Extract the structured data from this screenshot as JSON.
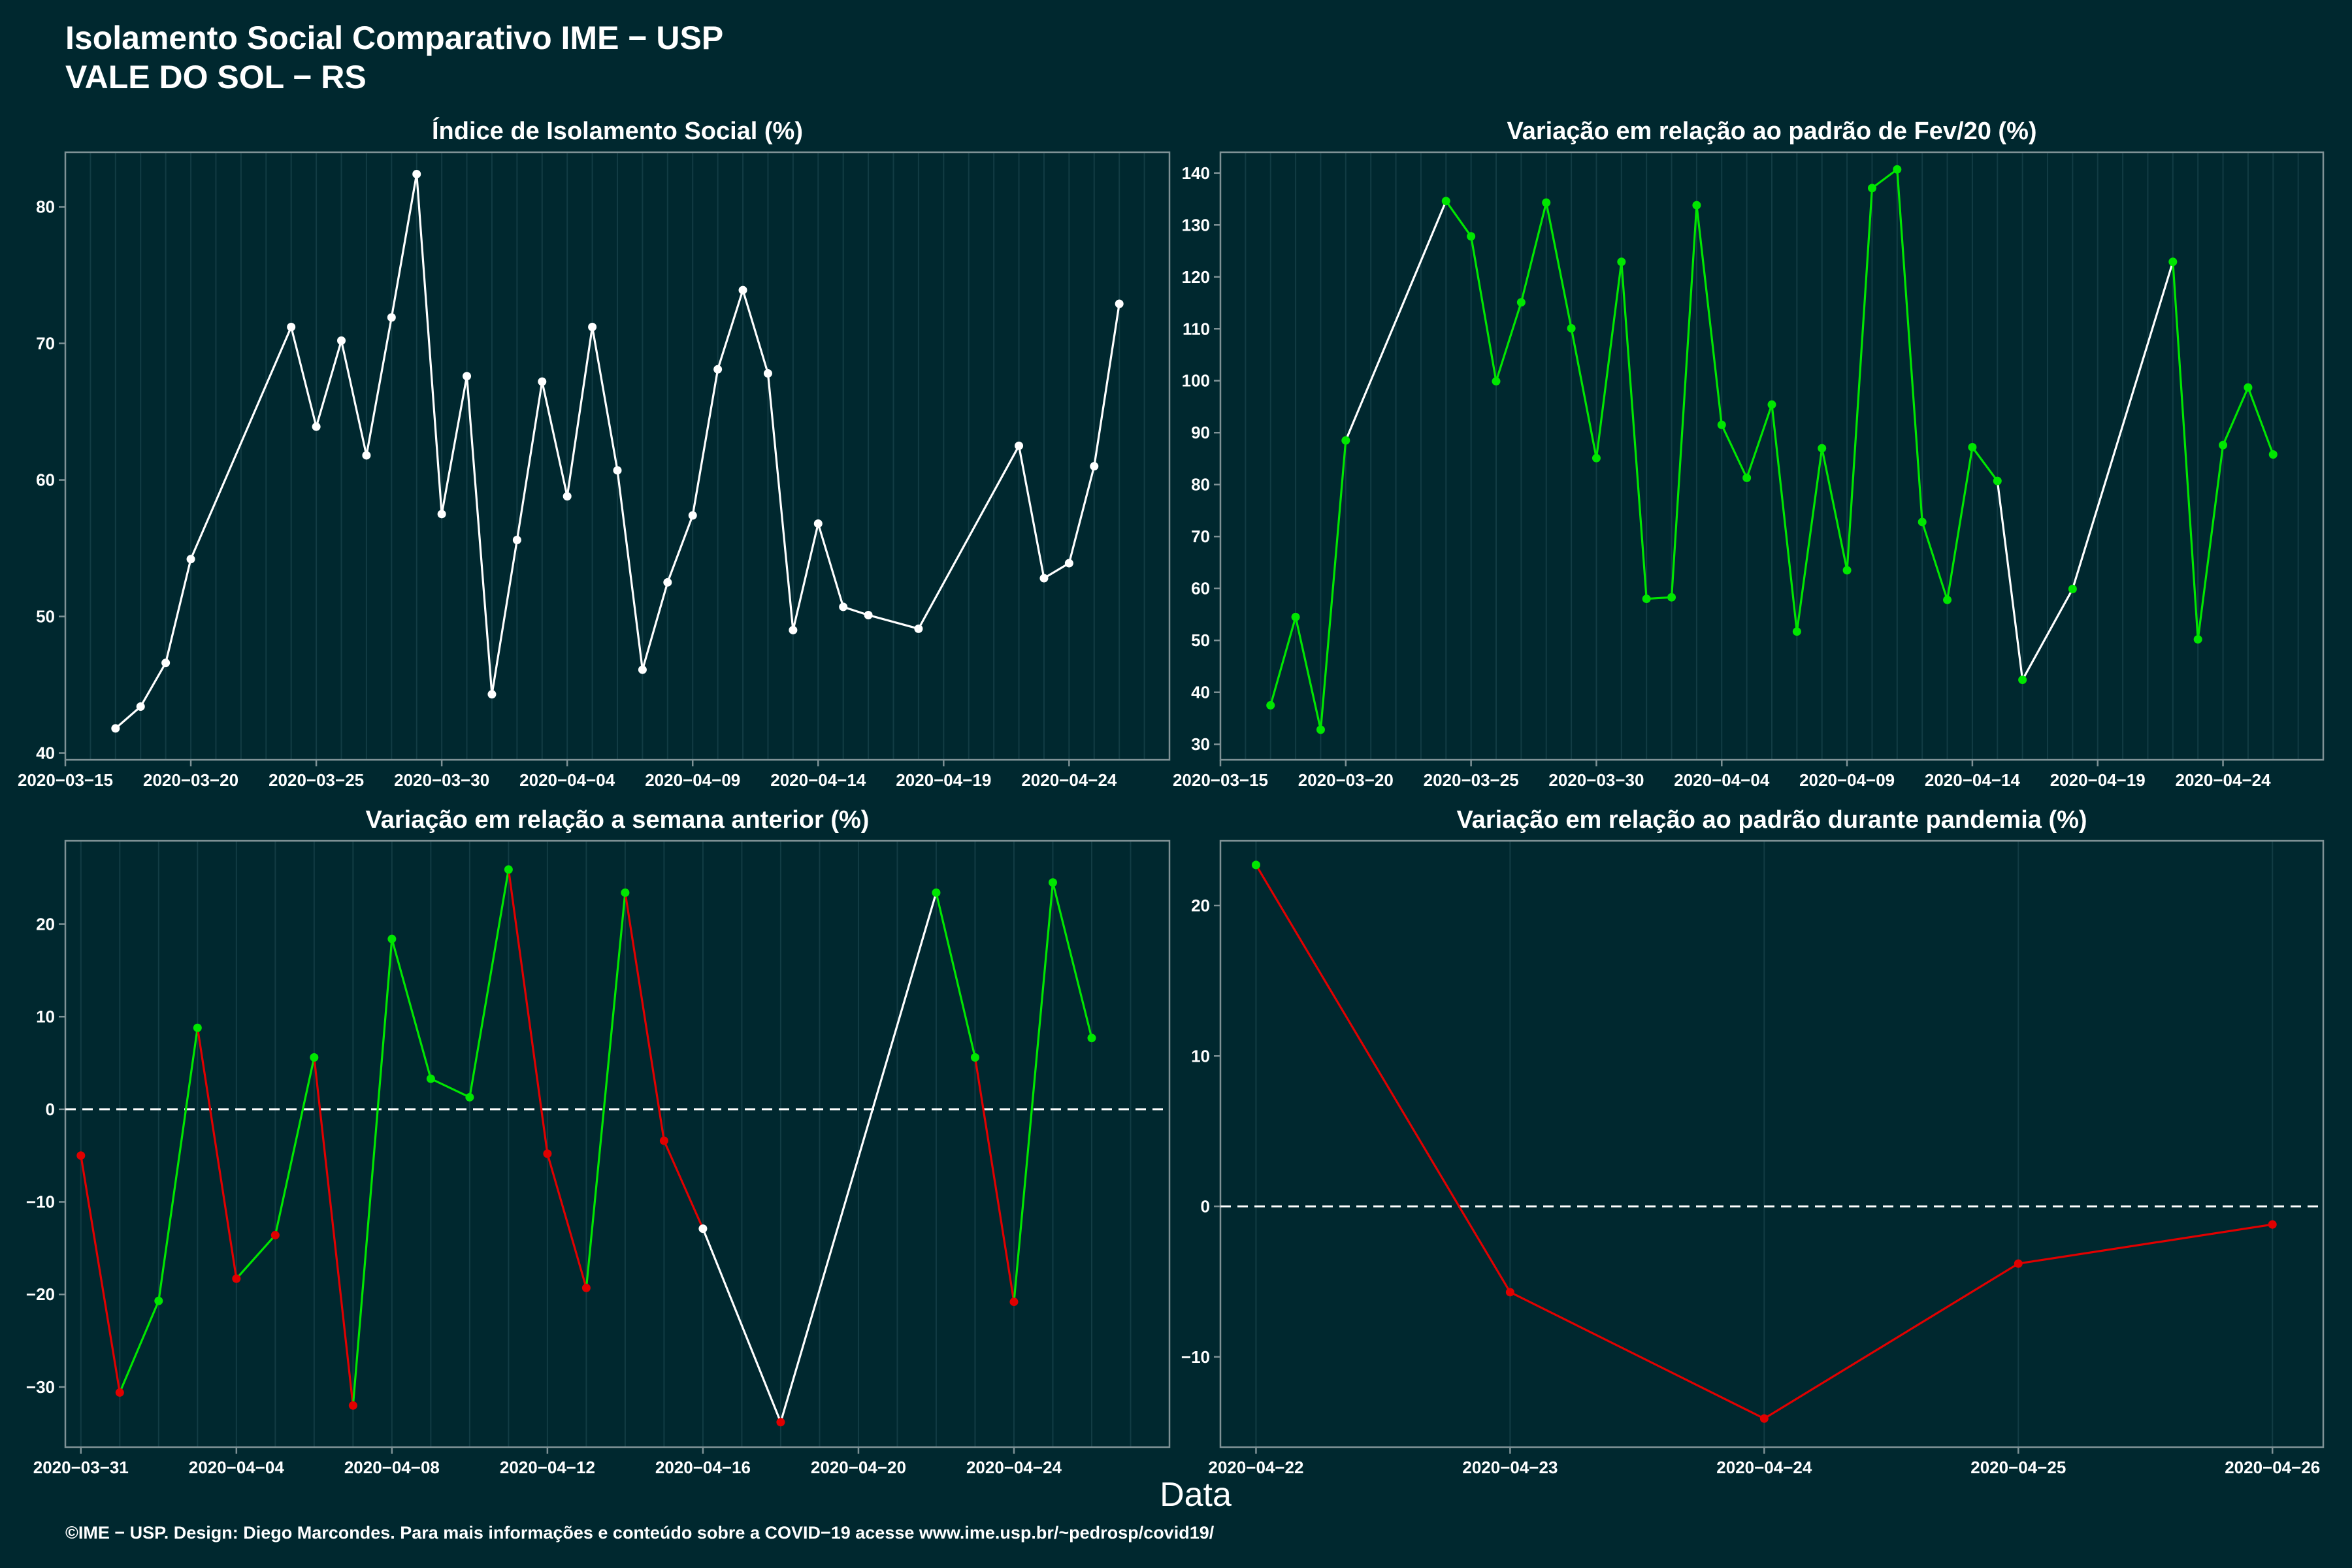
{
  "header": {
    "title": "Isolamento Social Comparativo IME − USP",
    "subtitle": "VALE DO SOL − RS"
  },
  "xlabel": "Data",
  "footer": "©IME − USP. Design: Diego Marcondes. Para mais informações e conteúdo sobre a COVID−19 acesse www.ime.usp.br/~pedrosp/covid19/",
  "colors": {
    "background": "#00282f",
    "white": "#ffffff",
    "green": "#00e600",
    "red": "#e00000",
    "frame": "#7f9296",
    "grid": "#123c44"
  },
  "chart_data": [
    {
      "type": "line",
      "title": "Índice de Isolamento Social (%)",
      "xlim": [
        "2020-03-15",
        "2020-04-28"
      ],
      "ylim": [
        39.5,
        84
      ],
      "xticks": [
        "2020-03-15",
        "2020-03-20",
        "2020-03-25",
        "2020-03-30",
        "2020-04-04",
        "2020-04-09",
        "2020-04-14",
        "2020-04-19",
        "2020-04-24"
      ],
      "yticks": [
        40,
        50,
        60,
        70,
        80
      ],
      "baseline": null,
      "series": [
        {
          "x": [
            "2020-03-17",
            "2020-03-18",
            "2020-03-19",
            "2020-03-20",
            "2020-03-24",
            "2020-03-25",
            "2020-03-26",
            "2020-03-27",
            "2020-03-28",
            "2020-03-29",
            "2020-03-30",
            "2020-03-31",
            "2020-04-01",
            "2020-04-02",
            "2020-04-03",
            "2020-04-04",
            "2020-04-05",
            "2020-04-06",
            "2020-04-07",
            "2020-04-08",
            "2020-04-09",
            "2020-04-10",
            "2020-04-11",
            "2020-04-12",
            "2020-04-13",
            "2020-04-14",
            "2020-04-15",
            "2020-04-16",
            "2020-04-18",
            "2020-04-22",
            "2020-04-23",
            "2020-04-24",
            "2020-04-25",
            "2020-04-26"
          ],
          "values": [
            41.8,
            43.4,
            46.6,
            54.2,
            71.2,
            63.9,
            70.2,
            61.8,
            71.9,
            82.4,
            57.5,
            67.6,
            44.3,
            55.6,
            67.2,
            58.8,
            71.2,
            60.7,
            46.1,
            52.5,
            57.4,
            68.1,
            73.9,
            67.8,
            49.0,
            56.8,
            50.7,
            50.1,
            49.1,
            62.5,
            52.8,
            53.9,
            61.0,
            72.9
          ]
        }
      ],
      "point_colors": [
        "#ffffff"
      ],
      "segment_colors": [
        "#ffffff"
      ]
    },
    {
      "type": "line",
      "title": "Variação em relação ao padrão de Fev/20 (%)",
      "xlim": [
        "2020-03-15",
        "2020-04-28"
      ],
      "ylim": [
        27,
        144
      ],
      "xticks": [
        "2020-03-15",
        "2020-03-20",
        "2020-03-25",
        "2020-03-30",
        "2020-04-04",
        "2020-04-09",
        "2020-04-14",
        "2020-04-19",
        "2020-04-24"
      ],
      "yticks": [
        30,
        40,
        50,
        60,
        70,
        80,
        90,
        100,
        110,
        120,
        130,
        140
      ],
      "baseline": null,
      "series": [
        {
          "x": [
            "2020-03-17",
            "2020-03-18",
            "2020-03-19",
            "2020-03-20",
            "2020-03-24",
            "2020-03-25",
            "2020-03-26",
            "2020-03-27",
            "2020-03-28",
            "2020-03-29",
            "2020-03-30",
            "2020-03-31",
            "2020-04-01",
            "2020-04-02",
            "2020-04-03",
            "2020-04-04",
            "2020-04-05",
            "2020-04-06",
            "2020-04-07",
            "2020-04-08",
            "2020-04-09",
            "2020-04-10",
            "2020-04-11",
            "2020-04-12",
            "2020-04-13",
            "2020-04-14",
            "2020-04-15",
            "2020-04-16",
            "2020-04-18",
            "2020-04-22",
            "2020-04-23",
            "2020-04-24",
            "2020-04-25",
            "2020-04-26"
          ],
          "values": [
            37.5,
            54.5,
            32.8,
            88.5,
            134.6,
            127.8,
            99.9,
            115.1,
            134.3,
            110.1,
            85.1,
            122.9,
            58.0,
            58.3,
            133.8,
            91.5,
            81.3,
            95.4,
            51.7,
            87.0,
            63.5,
            137.1,
            140.7,
            72.8,
            57.8,
            87.2,
            80.7,
            42.4,
            59.9,
            122.9,
            50.2,
            87.6,
            98.7,
            85.8
          ]
        }
      ],
      "point_colors": [
        "#00e600",
        "#00e600",
        "#00e600",
        "#00e600",
        "#00e600",
        "#00e600",
        "#00e600",
        "#00e600",
        "#00e600",
        "#00e600",
        "#00e600",
        "#00e600",
        "#00e600",
        "#00e600",
        "#00e600",
        "#00e600",
        "#00e600",
        "#00e600",
        "#00e600",
        "#00e600",
        "#00e600",
        "#00e600",
        "#00e600",
        "#00e600",
        "#00e600",
        "#00e600",
        "#00e600",
        "#00e600",
        "#00e600",
        "#00e600",
        "#00e600",
        "#00e600",
        "#00e600",
        "#00e600"
      ],
      "segment_colors": [
        "#00e600",
        "#00e600",
        "#00e600",
        "#ffffff",
        "#00e600",
        "#00e600",
        "#00e600",
        "#00e600",
        "#00e600",
        "#00e600",
        "#00e600",
        "#00e600",
        "#00e600",
        "#00e600",
        "#00e600",
        "#00e600",
        "#00e600",
        "#00e600",
        "#00e600",
        "#00e600",
        "#00e600",
        "#00e600",
        "#00e600",
        "#00e600",
        "#00e600",
        "#00e600",
        "#ffffff",
        "#ffffff",
        "#ffffff",
        "#00e600",
        "#00e600",
        "#00e600",
        "#00e600"
      ]
    },
    {
      "type": "line",
      "title": "Variação em relação a semana anterior (%)",
      "xlim": [
        "2020-03-30.6",
        "2020-04-28"
      ],
      "ylim": [
        -36.5,
        29
      ],
      "xticks": [
        "2020-03-31",
        "2020-04-04",
        "2020-04-08",
        "2020-04-12",
        "2020-04-16",
        "2020-04-20",
        "2020-04-24"
      ],
      "yticks": [
        -30,
        -20,
        -10,
        0,
        10,
        20
      ],
      "baseline": 0,
      "series": [
        {
          "x": [
            "2020-03-31",
            "2020-04-01",
            "2020-04-02",
            "2020-04-03",
            "2020-04-04",
            "2020-04-05",
            "2020-04-06",
            "2020-04-07",
            "2020-04-08",
            "2020-04-09",
            "2020-04-10",
            "2020-04-11",
            "2020-04-12",
            "2020-04-13",
            "2020-04-14",
            "2020-04-15",
            "2020-04-16",
            "2020-04-18",
            "2020-04-22",
            "2020-04-23",
            "2020-04-24",
            "2020-04-25",
            "2020-04-26"
          ],
          "values": [
            -5.0,
            -30.6,
            -20.7,
            8.8,
            -18.3,
            -13.6,
            5.6,
            -32.0,
            18.4,
            3.3,
            1.3,
            25.9,
            -4.8,
            -19.3,
            23.4,
            -3.4,
            -12.9,
            -33.8,
            23.4,
            5.6,
            -20.8,
            24.5,
            7.7
          ]
        }
      ],
      "point_colors": [
        "#e00000",
        "#e00000",
        "#00e600",
        "#00e600",
        "#e00000",
        "#e00000",
        "#00e600",
        "#e00000",
        "#00e600",
        "#00e600",
        "#00e600",
        "#00e600",
        "#e00000",
        "#e00000",
        "#00e600",
        "#e00000",
        "#ffffff",
        "#e00000",
        "#00e600",
        "#00e600",
        "#e00000",
        "#00e600",
        "#00e600"
      ],
      "segment_colors": [
        "#e00000",
        "#00e600",
        "#00e600",
        "#e00000",
        "#00e600",
        "#00e600",
        "#e00000",
        "#00e600",
        "#00e600",
        "#00e600",
        "#00e600",
        "#e00000",
        "#e00000",
        "#00e600",
        "#e00000",
        "#e00000",
        "#ffffff",
        "#ffffff",
        "#00e600",
        "#e00000",
        "#00e600",
        "#00e600"
      ]
    },
    {
      "type": "line",
      "title": "Variação em relação ao padrão durante pandemia (%)",
      "xlim": [
        "2020-04-21.86",
        "2020-04-26.2"
      ],
      "ylim": [
        -16,
        24.3
      ],
      "xticks": [
        "2020-04-22",
        "2020-04-23",
        "2020-04-24",
        "2020-04-25",
        "2020-04-26"
      ],
      "yticks": [
        -10,
        0,
        10,
        20
      ],
      "baseline": 0,
      "series": [
        {
          "x": [
            "2020-04-22",
            "2020-04-23",
            "2020-04-24",
            "2020-04-25",
            "2020-04-26"
          ],
          "values": [
            22.7,
            -5.7,
            -14.1,
            -3.8,
            -1.2
          ]
        }
      ],
      "point_colors": [
        "#00e600",
        "#e00000",
        "#e00000",
        "#e00000",
        "#e00000"
      ],
      "segment_colors": [
        "#e00000",
        "#e00000",
        "#e00000",
        "#e00000"
      ]
    }
  ]
}
